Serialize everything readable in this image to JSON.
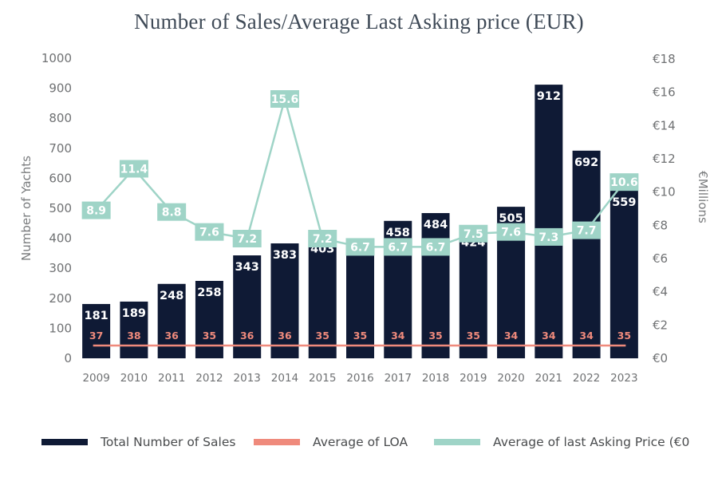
{
  "chart_data": {
    "type": "bar",
    "title": "Number of Sales/Average Last Asking price (EUR)",
    "ylabel": "Number of Yachts",
    "y2label": "€Millions",
    "ylim": [
      0,
      1000
    ],
    "y2lim": [
      0,
      18
    ],
    "yticks": [
      "0",
      "100",
      "200",
      "300",
      "400",
      "500",
      "600",
      "700",
      "800",
      "900",
      "1000"
    ],
    "y2ticks": [
      "€0",
      "€2",
      "€4",
      "€6",
      "€8",
      "€10",
      "€12",
      "€14",
      "€16",
      "€18"
    ],
    "categories": [
      "2009",
      "2010",
      "2011",
      "2012",
      "2013",
      "2014",
      "2015",
      "2016",
      "2017",
      "2018",
      "2019",
      "2020",
      "2021",
      "2022",
      "2023"
    ],
    "series": [
      {
        "name": "Total Number of Sales",
        "kind": "bar",
        "axis": "left",
        "color": "#0f1a35",
        "values": [
          181,
          189,
          248,
          258,
          343,
          383,
          403,
          394,
          458,
          484,
          424,
          505,
          912,
          692,
          559
        ]
      },
      {
        "name": "Average of LOA",
        "kind": "line",
        "axis": "left",
        "color": "#ef8a7c",
        "plotted_values": [
          37,
          38,
          36,
          35,
          36,
          36,
          35,
          35,
          34,
          35,
          35,
          34,
          34,
          34,
          35
        ],
        "labels": [
          "37",
          "38",
          "36",
          "35",
          "36",
          "36",
          "35",
          "35",
          "34",
          "35",
          "35",
          "34",
          "34",
          "34",
          "35"
        ]
      },
      {
        "name": "Average of last Asking Price (€0",
        "kind": "line",
        "axis": "right",
        "color": "#9fd4c7",
        "values": [
          8.9,
          11.4,
          8.8,
          7.6,
          7.2,
          15.6,
          7.2,
          6.7,
          6.7,
          6.7,
          7.5,
          7.6,
          7.3,
          7.7,
          10.6
        ],
        "labels": [
          "8.9",
          "11.4",
          "8.8",
          "7.6",
          "7.2",
          "15.6",
          "7.2",
          "6.7",
          "6.7",
          "6.7",
          "7.5",
          "7.6",
          "7.3",
          "7.7",
          "10.6"
        ]
      }
    ],
    "grid": false,
    "legend_position": "bottom"
  }
}
